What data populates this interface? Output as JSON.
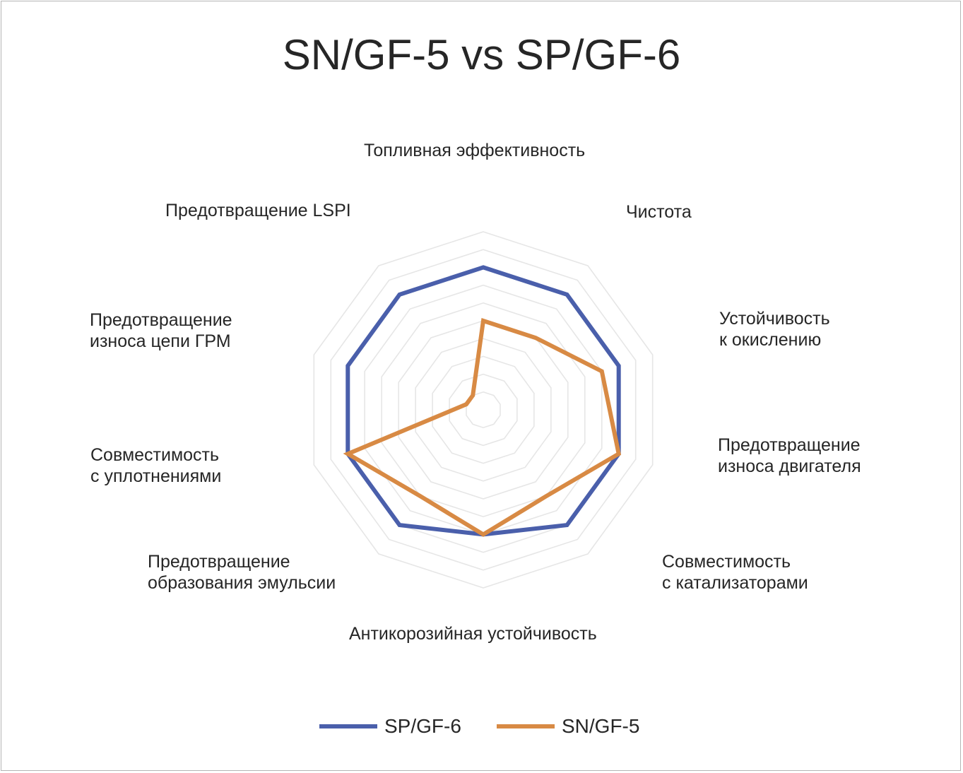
{
  "chart_data": {
    "type": "radar",
    "title": "SN/GF-5 vs SP/GF-6",
    "categories": [
      "Топливная эффективность",
      "Чистота",
      "Устойчивость\nк окислению",
      "Предотвращение\nизноса двигателя",
      "Совместимость\nс катализаторами",
      "Антикорозийная устойчивость",
      "Предотвращение\nобразования эмульсии",
      "Совместимость\nс уплотнениями",
      "Предотвращение\nизноса цепи ГРМ",
      "Предотвращение LSPI"
    ],
    "rlim": [
      0,
      10
    ],
    "grid_levels": 10,
    "grid": true,
    "legend_position": "bottom",
    "series": [
      {
        "name": "SP/GF-6",
        "color": "#4a5fab",
        "values": [
          8,
          8,
          8,
          8,
          8,
          7,
          8,
          8,
          8,
          8
        ]
      },
      {
        "name": "SN/GF-5",
        "color": "#d88a44",
        "values": [
          5,
          5,
          7,
          8,
          6,
          7,
          6,
          8,
          1,
          1
        ]
      }
    ]
  }
}
